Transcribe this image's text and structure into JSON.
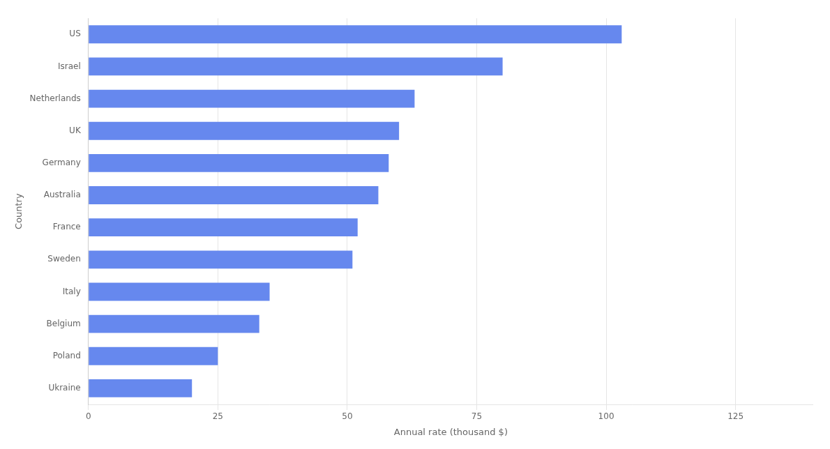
{
  "chart_data": {
    "type": "bar",
    "orientation": "horizontal",
    "categories": [
      "Ukraine",
      "Poland",
      "Belgium",
      "Italy",
      "Sweden",
      "France",
      "Australia",
      "Germany",
      "UK",
      "Netherlands",
      "Israel",
      "US"
    ],
    "values": [
      20,
      25,
      33,
      35,
      51,
      52,
      56,
      58,
      60,
      63,
      80,
      103
    ],
    "color": "#6688EE",
    "xlabel": "Annual rate (thousand $)",
    "ylabel": "Country",
    "xlim": [
      0,
      140
    ],
    "xticks": [
      0,
      25,
      50,
      75,
      100,
      125
    ],
    "grid": true
  }
}
